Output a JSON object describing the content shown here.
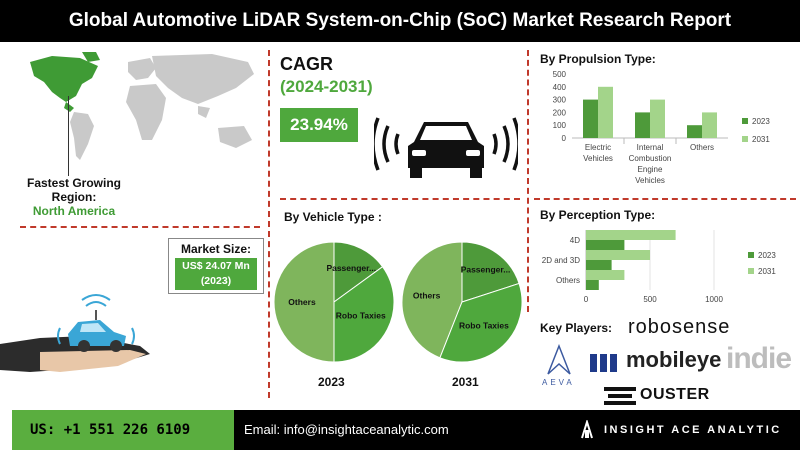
{
  "title": "Global Automotive LiDAR System-on-Chip (SoC) Market Research Report",
  "region": {
    "label": "Fastest Growing Region:",
    "value": "North America"
  },
  "market_size": {
    "label": "Market Size:",
    "value_line1": "US$ 24.07 Mn",
    "value_line2": "(2023)"
  },
  "cagr": {
    "title": "CAGR",
    "period": "(2024-2031)",
    "value": "23.94%"
  },
  "sections": {
    "propulsion": "By Propulsion Type:",
    "vehicle": "By Vehicle Type :",
    "perception": "By Perception Type:",
    "key_players": "Key Players:"
  },
  "players": [
    "robosense",
    "mobileye",
    "indie",
    "AEVA",
    "OUSTER"
  ],
  "footer": {
    "phone": "US: +1 551 226 6109",
    "email": "Email: info@insightaceanalytic.com",
    "brand": "INSIGHT ACE ANALYTIC"
  },
  "colors": {
    "dark_green": "#4e9a3a",
    "light_green": "#a3d48a",
    "accent_green": "#4fa83d",
    "pie_others": "#7fb55c"
  },
  "chart_data": [
    {
      "type": "bar",
      "title": "By Propulsion Type:",
      "categories": [
        "Electric Vehicles",
        "Internal Combustion Engine Vehicles",
        "Others"
      ],
      "category_lines": [
        [
          "Electric",
          "Vehicles"
        ],
        [
          "Internal",
          "Combustion",
          "Engine",
          "Vehicles"
        ],
        [
          "Others"
        ]
      ],
      "series": [
        {
          "name": "2023",
          "values": [
            300,
            200,
            100
          ]
        },
        {
          "name": "2031",
          "values": [
            400,
            300,
            200
          ]
        }
      ],
      "ylim": [
        0,
        500
      ],
      "yticks": [
        0,
        100,
        200,
        300,
        400,
        500
      ],
      "legend": "right"
    },
    {
      "type": "bar",
      "orientation": "horizontal",
      "title": "By Perception Type:",
      "categories": [
        "4D",
        "2D and 3D",
        "Others"
      ],
      "series": [
        {
          "name": "2023",
          "values": [
            300,
            200,
            100
          ]
        },
        {
          "name": "2031",
          "values": [
            700,
            500,
            300
          ]
        }
      ],
      "xlim": [
        0,
        1000
      ],
      "xticks": [
        0,
        500,
        1000
      ],
      "legend": "right"
    },
    {
      "type": "pie",
      "title": "By Vehicle Type :",
      "year": "2023",
      "slices": [
        {
          "label": "Others",
          "value": 50
        },
        {
          "label": "Passenger...",
          "value": 15
        },
        {
          "label": "Robo Taxies",
          "value": 35
        }
      ]
    },
    {
      "type": "pie",
      "year": "2031",
      "slices": [
        {
          "label": "Others",
          "value": 44
        },
        {
          "label": "Passenger...",
          "value": 20
        },
        {
          "label": "Robo Taxies",
          "value": 36
        }
      ]
    }
  ]
}
